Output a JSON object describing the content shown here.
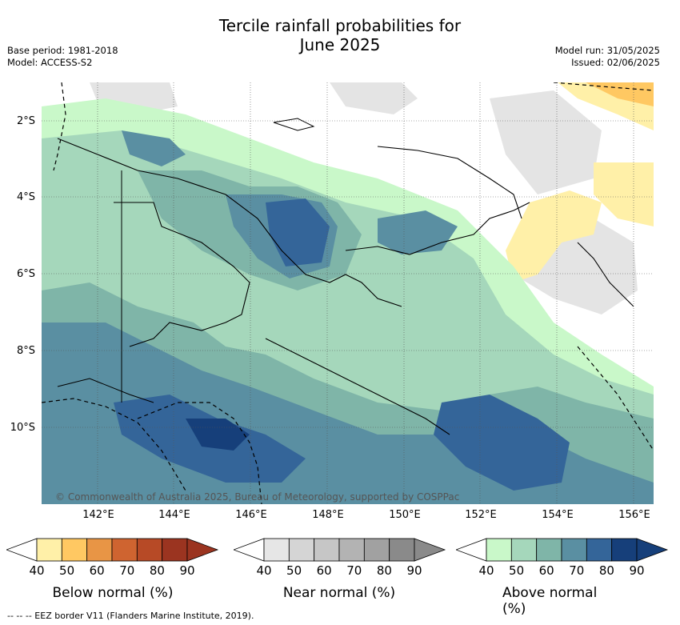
{
  "title_line1": "Tercile rainfall probabilities for",
  "title_line2": "June 2025",
  "meta_left": {
    "base_period": "Base period: 1981-2018",
    "model": "Model: ACCESS-S2"
  },
  "meta_right": {
    "model_run": "Model run: 31/05/2025",
    "issued": "Issued: 02/06/2025"
  },
  "lat_labels": [
    "2°S",
    "4°S",
    "6°S",
    "8°S",
    "10°S"
  ],
  "lon_labels": [
    "142°E",
    "144°E",
    "146°E",
    "148°E",
    "150°E",
    "152°E",
    "154°E",
    "156°E"
  ],
  "copyright": "© Commonwealth of Australia 2025, Bureau of Meteorology, supported by COSPPac",
  "legend": {
    "below": {
      "title": "Below normal (%)",
      "colors": [
        "#fff0a8",
        "#ffc862",
        "#e89545",
        "#cf6430",
        "#b74a26",
        "#9b3420"
      ]
    },
    "near": {
      "title": "Near normal (%)",
      "colors": [
        "#e6e6e6",
        "#d5d5d5",
        "#c6c6c6",
        "#b3b3b3",
        "#a1a1a1",
        "#8a8a8a"
      ]
    },
    "above": {
      "title": "Above normal (%)",
      "colors": [
        "#c9f8c9",
        "#a5d7bb",
        "#7fb5a8",
        "#5a8fa2",
        "#346599",
        "#163f7a"
      ]
    },
    "ticks": [
      "40",
      "50",
      "60",
      "70",
      "80",
      "90"
    ]
  },
  "footnote": "--  --  -- EEZ border V11 (Flanders Marine Institute, 2019)."
}
